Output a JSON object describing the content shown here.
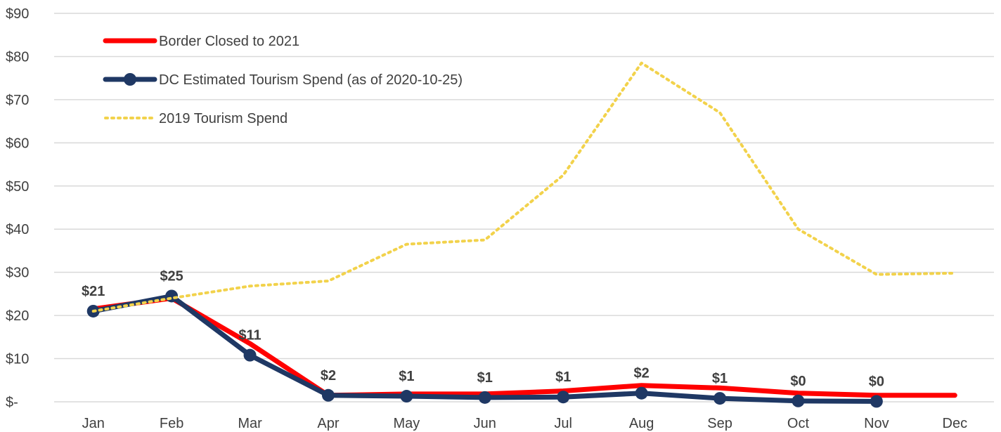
{
  "chart_data": {
    "type": "line",
    "categories": [
      "Jan",
      "Feb",
      "Mar",
      "Apr",
      "May",
      "Jun",
      "Jul",
      "Aug",
      "Sep",
      "Oct",
      "Nov",
      "Dec"
    ],
    "ylim": [
      0,
      90
    ],
    "y_ticks": [
      {
        "value": 0,
        "label": "$-"
      },
      {
        "value": 10,
        "label": "$10"
      },
      {
        "value": 20,
        "label": "$20"
      },
      {
        "value": 30,
        "label": "$30"
      },
      {
        "value": 40,
        "label": "$40"
      },
      {
        "value": 50,
        "label": "$50"
      },
      {
        "value": 60,
        "label": "$60"
      },
      {
        "value": 70,
        "label": "$70"
      },
      {
        "value": 80,
        "label": "$80"
      },
      {
        "value": 90,
        "label": "$90"
      }
    ],
    "grid": true,
    "legend_position": "top-left",
    "series": [
      {
        "name": "Border Closed to 2021",
        "color": "#ff0000",
        "style": "solid-thick",
        "values": [
          21.5,
          24,
          13.5,
          1.5,
          1.8,
          1.8,
          2.5,
          3.8,
          3.2,
          2.0,
          1.5,
          1.5
        ]
      },
      {
        "name": "DC Estimated Tourism Spend (as of 2020-10-25)",
        "color": "#1f3864",
        "style": "solid-markers",
        "values": [
          21,
          24.5,
          10.8,
          1.5,
          1.3,
          1.0,
          1.1,
          2.0,
          0.8,
          0.2,
          0.1,
          null
        ],
        "data_labels": [
          "$21",
          "$25",
          "$11",
          "$2",
          "$1",
          "$1",
          "$1",
          "$2",
          "$1",
          "$0",
          "$0",
          null
        ]
      },
      {
        "name": "2019 Tourism Spend",
        "color": "#f2d24b",
        "style": "dotted",
        "values": [
          21,
          24,
          26.8,
          28,
          36.5,
          37.5,
          52.5,
          78.5,
          67,
          40,
          29.5,
          29.8
        ]
      }
    ]
  }
}
